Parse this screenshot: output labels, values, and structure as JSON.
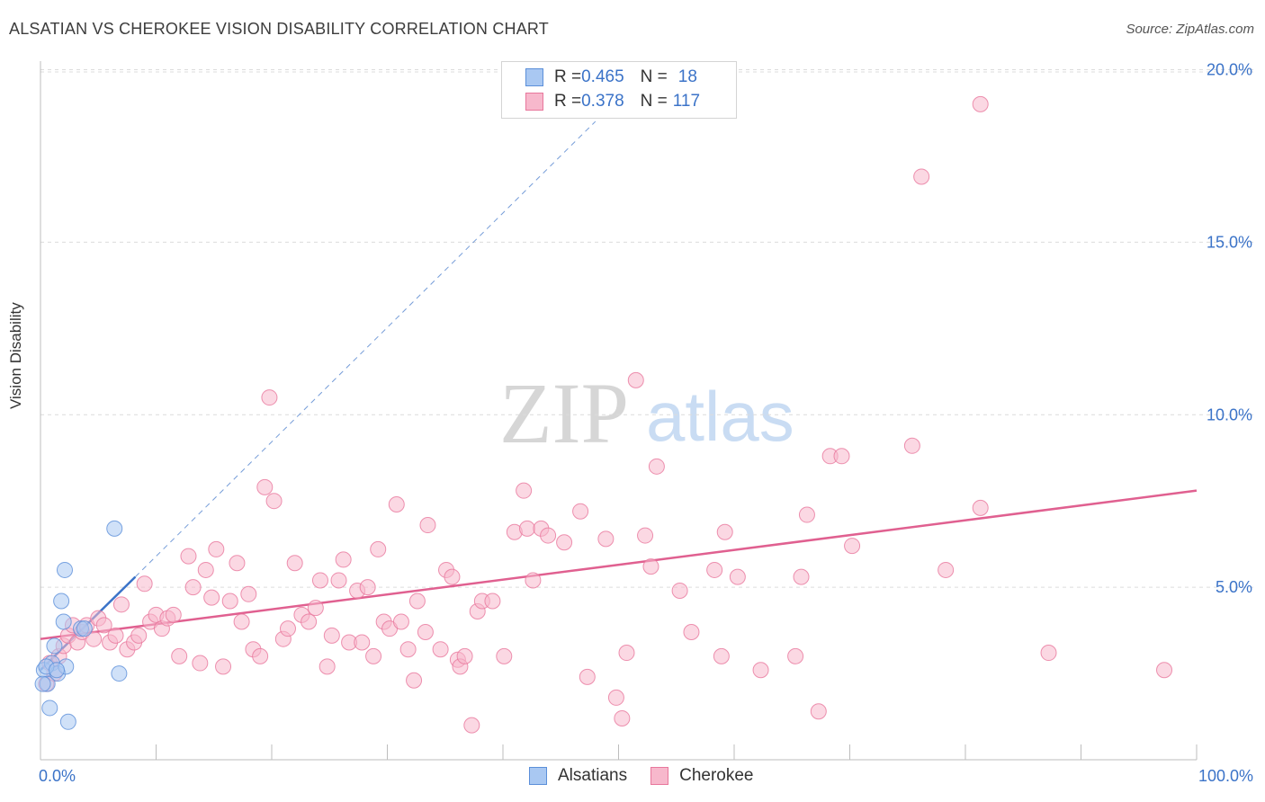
{
  "header": {
    "title": "ALSATIAN VS CHEROKEE VISION DISABILITY CORRELATION CHART",
    "source": "Source: ZipAtlas.com"
  },
  "legend": {
    "rows": [
      {
        "r_label": "R = ",
        "r_value": "0.465",
        "n_label": "N = ",
        "n_value": "18"
      },
      {
        "r_label": "R = ",
        "r_value": "0.378",
        "n_label": "N = ",
        "n_value": "117"
      }
    ]
  },
  "watermark": {
    "zip": "ZIP",
    "atlas": "atlas"
  },
  "colors": {
    "alsatian_fill": "#a9c8f2",
    "alsatian_stroke": "#5b8fd9",
    "alsatian_line": "#3b73c8",
    "cherokee_fill": "#f7b8cc",
    "cherokee_stroke": "#e8779c",
    "cherokee_line": "#e06090",
    "tick_label": "#3b73c8"
  },
  "chart_data": {
    "type": "scatter",
    "title": "ALSATIAN VS CHEROKEE VISION DISABILITY CORRELATION CHART",
    "xlabel": "",
    "ylabel": "Vision Disability",
    "xlim": [
      0,
      100
    ],
    "ylim": [
      0,
      20
    ],
    "x_tick_labels": [
      "0.0%",
      "100.0%"
    ],
    "y_ticks": [
      5,
      10,
      15,
      20
    ],
    "y_tick_labels": [
      "5.0%",
      "10.0%",
      "15.0%",
      "20.0%"
    ],
    "grid": "horizontal dashed",
    "legend_position": "top-center",
    "series": [
      {
        "name": "Alsatians",
        "R": 0.465,
        "N": 18,
        "trend": {
          "x0": 0,
          "y0": 2.6,
          "x1": 8.2,
          "y1": 5.3,
          "dashed_to_x": 48,
          "dashed_to_y": 18.5
        },
        "points": [
          [
            0.3,
            2.6
          ],
          [
            0.6,
            2.2
          ],
          [
            1.0,
            2.8
          ],
          [
            1.2,
            3.3
          ],
          [
            1.5,
            2.5
          ],
          [
            1.8,
            4.6
          ],
          [
            2.0,
            4.0
          ],
          [
            2.2,
            2.7
          ],
          [
            2.1,
            5.5
          ],
          [
            2.4,
            1.1
          ],
          [
            0.8,
            1.5
          ],
          [
            3.5,
            3.8
          ],
          [
            3.8,
            3.8
          ],
          [
            6.4,
            6.7
          ],
          [
            6.8,
            2.5
          ],
          [
            0.2,
            2.2
          ],
          [
            0.5,
            2.7
          ],
          [
            1.4,
            2.6
          ]
        ]
      },
      {
        "name": "Cherokee",
        "R": 0.378,
        "N": 117,
        "trend": {
          "x0": 0,
          "y0": 3.5,
          "x1": 100,
          "y1": 7.8
        },
        "points": [
          [
            0.5,
            2.2
          ],
          [
            0.8,
            2.8
          ],
          [
            1.2,
            2.5
          ],
          [
            1.6,
            3.0
          ],
          [
            2.0,
            3.3
          ],
          [
            2.4,
            3.6
          ],
          [
            2.8,
            3.9
          ],
          [
            3.2,
            3.4
          ],
          [
            3.6,
            3.7
          ],
          [
            4.0,
            3.9
          ],
          [
            4.6,
            3.5
          ],
          [
            5.0,
            4.1
          ],
          [
            5.5,
            3.9
          ],
          [
            6.0,
            3.4
          ],
          [
            6.5,
            3.6
          ],
          [
            7.0,
            4.5
          ],
          [
            7.5,
            3.2
          ],
          [
            8.1,
            3.4
          ],
          [
            8.5,
            3.6
          ],
          [
            9.0,
            5.1
          ],
          [
            9.5,
            4.0
          ],
          [
            10.0,
            4.2
          ],
          [
            10.5,
            3.8
          ],
          [
            11.0,
            4.1
          ],
          [
            11.5,
            4.2
          ],
          [
            12.0,
            3.0
          ],
          [
            12.8,
            5.9
          ],
          [
            13.2,
            5.0
          ],
          [
            13.8,
            2.8
          ],
          [
            14.3,
            5.5
          ],
          [
            14.8,
            4.7
          ],
          [
            15.2,
            6.1
          ],
          [
            15.8,
            2.7
          ],
          [
            16.4,
            4.6
          ],
          [
            17.0,
            5.7
          ],
          [
            17.4,
            4.0
          ],
          [
            18.0,
            4.8
          ],
          [
            18.4,
            3.2
          ],
          [
            19.0,
            3.0
          ],
          [
            19.4,
            7.9
          ],
          [
            19.8,
            10.5
          ],
          [
            20.2,
            7.5
          ],
          [
            21.0,
            3.5
          ],
          [
            21.4,
            3.8
          ],
          [
            22.0,
            5.7
          ],
          [
            22.6,
            4.2
          ],
          [
            23.2,
            4.0
          ],
          [
            23.8,
            4.4
          ],
          [
            24.2,
            5.2
          ],
          [
            24.8,
            2.7
          ],
          [
            25.2,
            3.6
          ],
          [
            25.8,
            5.2
          ],
          [
            26.2,
            5.8
          ],
          [
            26.7,
            3.4
          ],
          [
            27.4,
            4.9
          ],
          [
            27.8,
            3.4
          ],
          [
            28.3,
            5.0
          ],
          [
            28.8,
            3.0
          ],
          [
            29.2,
            6.1
          ],
          [
            29.7,
            4.0
          ],
          [
            30.2,
            3.8
          ],
          [
            30.8,
            7.4
          ],
          [
            31.2,
            4.0
          ],
          [
            31.8,
            3.2
          ],
          [
            32.3,
            2.3
          ],
          [
            32.6,
            4.6
          ],
          [
            33.3,
            3.7
          ],
          [
            33.5,
            6.8
          ],
          [
            34.6,
            3.2
          ],
          [
            35.1,
            5.5
          ],
          [
            35.6,
            5.3
          ],
          [
            36.1,
            2.9
          ],
          [
            36.3,
            2.7
          ],
          [
            36.7,
            3.0
          ],
          [
            37.3,
            1.0
          ],
          [
            37.8,
            4.3
          ],
          [
            38.2,
            4.6
          ],
          [
            39.1,
            4.6
          ],
          [
            40.1,
            3.0
          ],
          [
            41.0,
            6.6
          ],
          [
            41.8,
            7.8
          ],
          [
            42.1,
            6.7
          ],
          [
            42.6,
            5.2
          ],
          [
            43.3,
            6.7
          ],
          [
            43.9,
            6.5
          ],
          [
            45.3,
            6.3
          ],
          [
            46.7,
            7.2
          ],
          [
            47.3,
            2.4
          ],
          [
            48.9,
            6.4
          ],
          [
            49.8,
            1.8
          ],
          [
            50.3,
            1.2
          ],
          [
            50.7,
            3.1
          ],
          [
            51.5,
            11.0
          ],
          [
            52.3,
            6.5
          ],
          [
            52.8,
            5.6
          ],
          [
            53.3,
            8.5
          ],
          [
            55.3,
            4.9
          ],
          [
            56.3,
            3.7
          ],
          [
            58.3,
            5.5
          ],
          [
            58.9,
            3.0
          ],
          [
            59.2,
            6.6
          ],
          [
            60.3,
            5.3
          ],
          [
            62.3,
            2.6
          ],
          [
            65.3,
            3.0
          ],
          [
            65.8,
            5.3
          ],
          [
            66.3,
            7.1
          ],
          [
            67.3,
            1.4
          ],
          [
            68.3,
            8.8
          ],
          [
            69.3,
            8.8
          ],
          [
            70.2,
            6.2
          ],
          [
            75.4,
            9.1
          ],
          [
            76.2,
            16.9
          ],
          [
            78.3,
            5.5
          ],
          [
            81.3,
            7.3
          ],
          [
            81.3,
            19.0
          ],
          [
            87.2,
            3.1
          ],
          [
            97.2,
            2.6
          ]
        ]
      }
    ]
  },
  "bottom_legend": {
    "items": [
      "Alsatians",
      "Cherokee"
    ]
  }
}
